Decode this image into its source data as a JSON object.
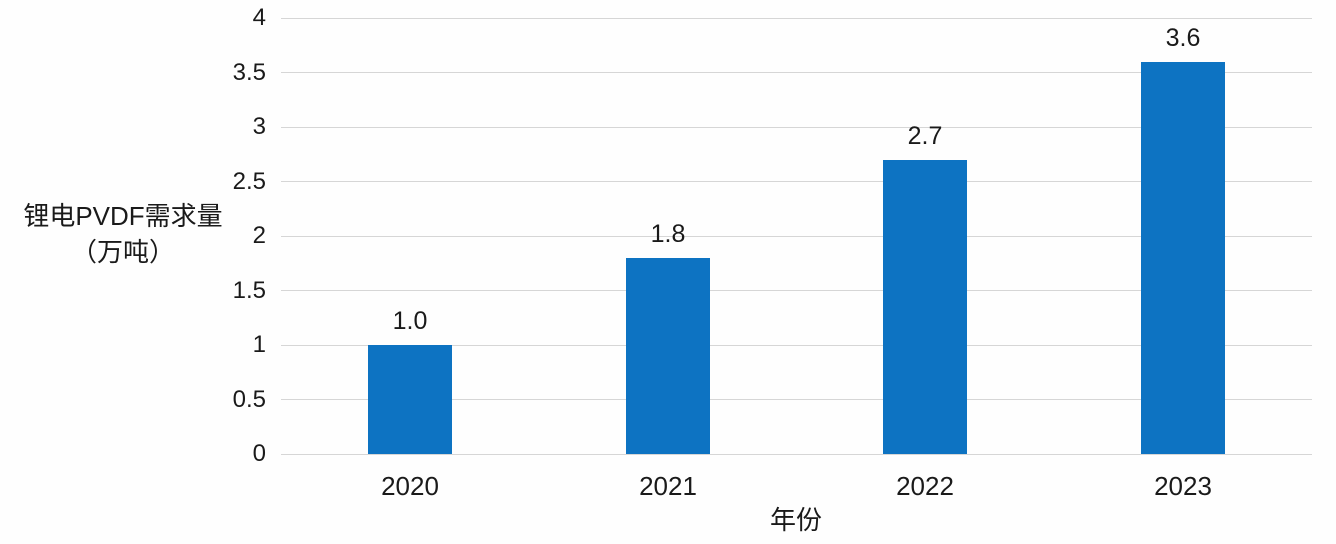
{
  "chart_data": {
    "type": "bar",
    "categories": [
      "2020",
      "2021",
      "2022",
      "2023"
    ],
    "values": [
      1.0,
      1.8,
      2.7,
      3.6
    ],
    "value_labels": [
      "1.0",
      "1.8",
      "2.7",
      "3.6"
    ],
    "title": "",
    "xlabel": "年份",
    "ylabel": "锂电PVDF需求量（万吨）",
    "ylabel_lines": [
      "锂电PVDF需求量",
      "（万吨）"
    ],
    "ytick_labels": [
      "0",
      "0.5",
      "1",
      "1.5",
      "2",
      "2.5",
      "3",
      "3.5",
      "4"
    ],
    "ytick_values": [
      0,
      0.5,
      1,
      1.5,
      2,
      2.5,
      3,
      3.5,
      4
    ],
    "ylim": [
      0,
      4
    ],
    "grid": "horizontal",
    "legend": "none",
    "bar_color": "#0d73c2",
    "gridline_color": "#d6d6d6",
    "text_color": "#1a1a1a",
    "background_color": "#ffffff"
  }
}
